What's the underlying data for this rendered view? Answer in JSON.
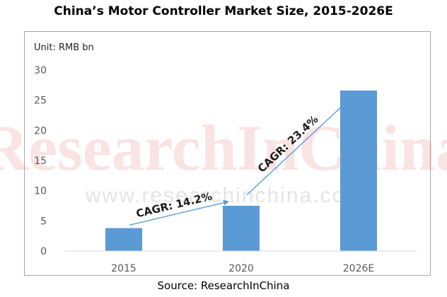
{
  "page": {
    "title": "China’s Motor Controller Market Size, 2015-2026E",
    "unit_label": "Unit: RMB bn",
    "source": "Source: ResearchInChina"
  },
  "watermark": {
    "brand": "ResearchInChina",
    "url": "www.researchinchina.com"
  },
  "colors": {
    "bar": "#5b9bd5",
    "arrow": "#5b9bd5",
    "axis": "#d9d9d9",
    "watermark": "#d23030"
  },
  "chart_data": {
    "type": "bar",
    "categories": [
      "2015",
      "2020",
      "2026E"
    ],
    "values": [
      3.8,
      7.5,
      26.6
    ],
    "ylim": [
      0,
      30
    ],
    "yticks": [
      0,
      5,
      10,
      15,
      20,
      25,
      30
    ],
    "grid": false,
    "annotations": [
      {
        "text": "CAGR: 14.2%",
        "from": [
          "2015",
          4.3
        ],
        "to": [
          "2020",
          8.2
        ]
      },
      {
        "text": "CAGR: 23.4%",
        "from": [
          "2020",
          9.3
        ],
        "to": [
          "2026E",
          24.6
        ]
      }
    ]
  }
}
